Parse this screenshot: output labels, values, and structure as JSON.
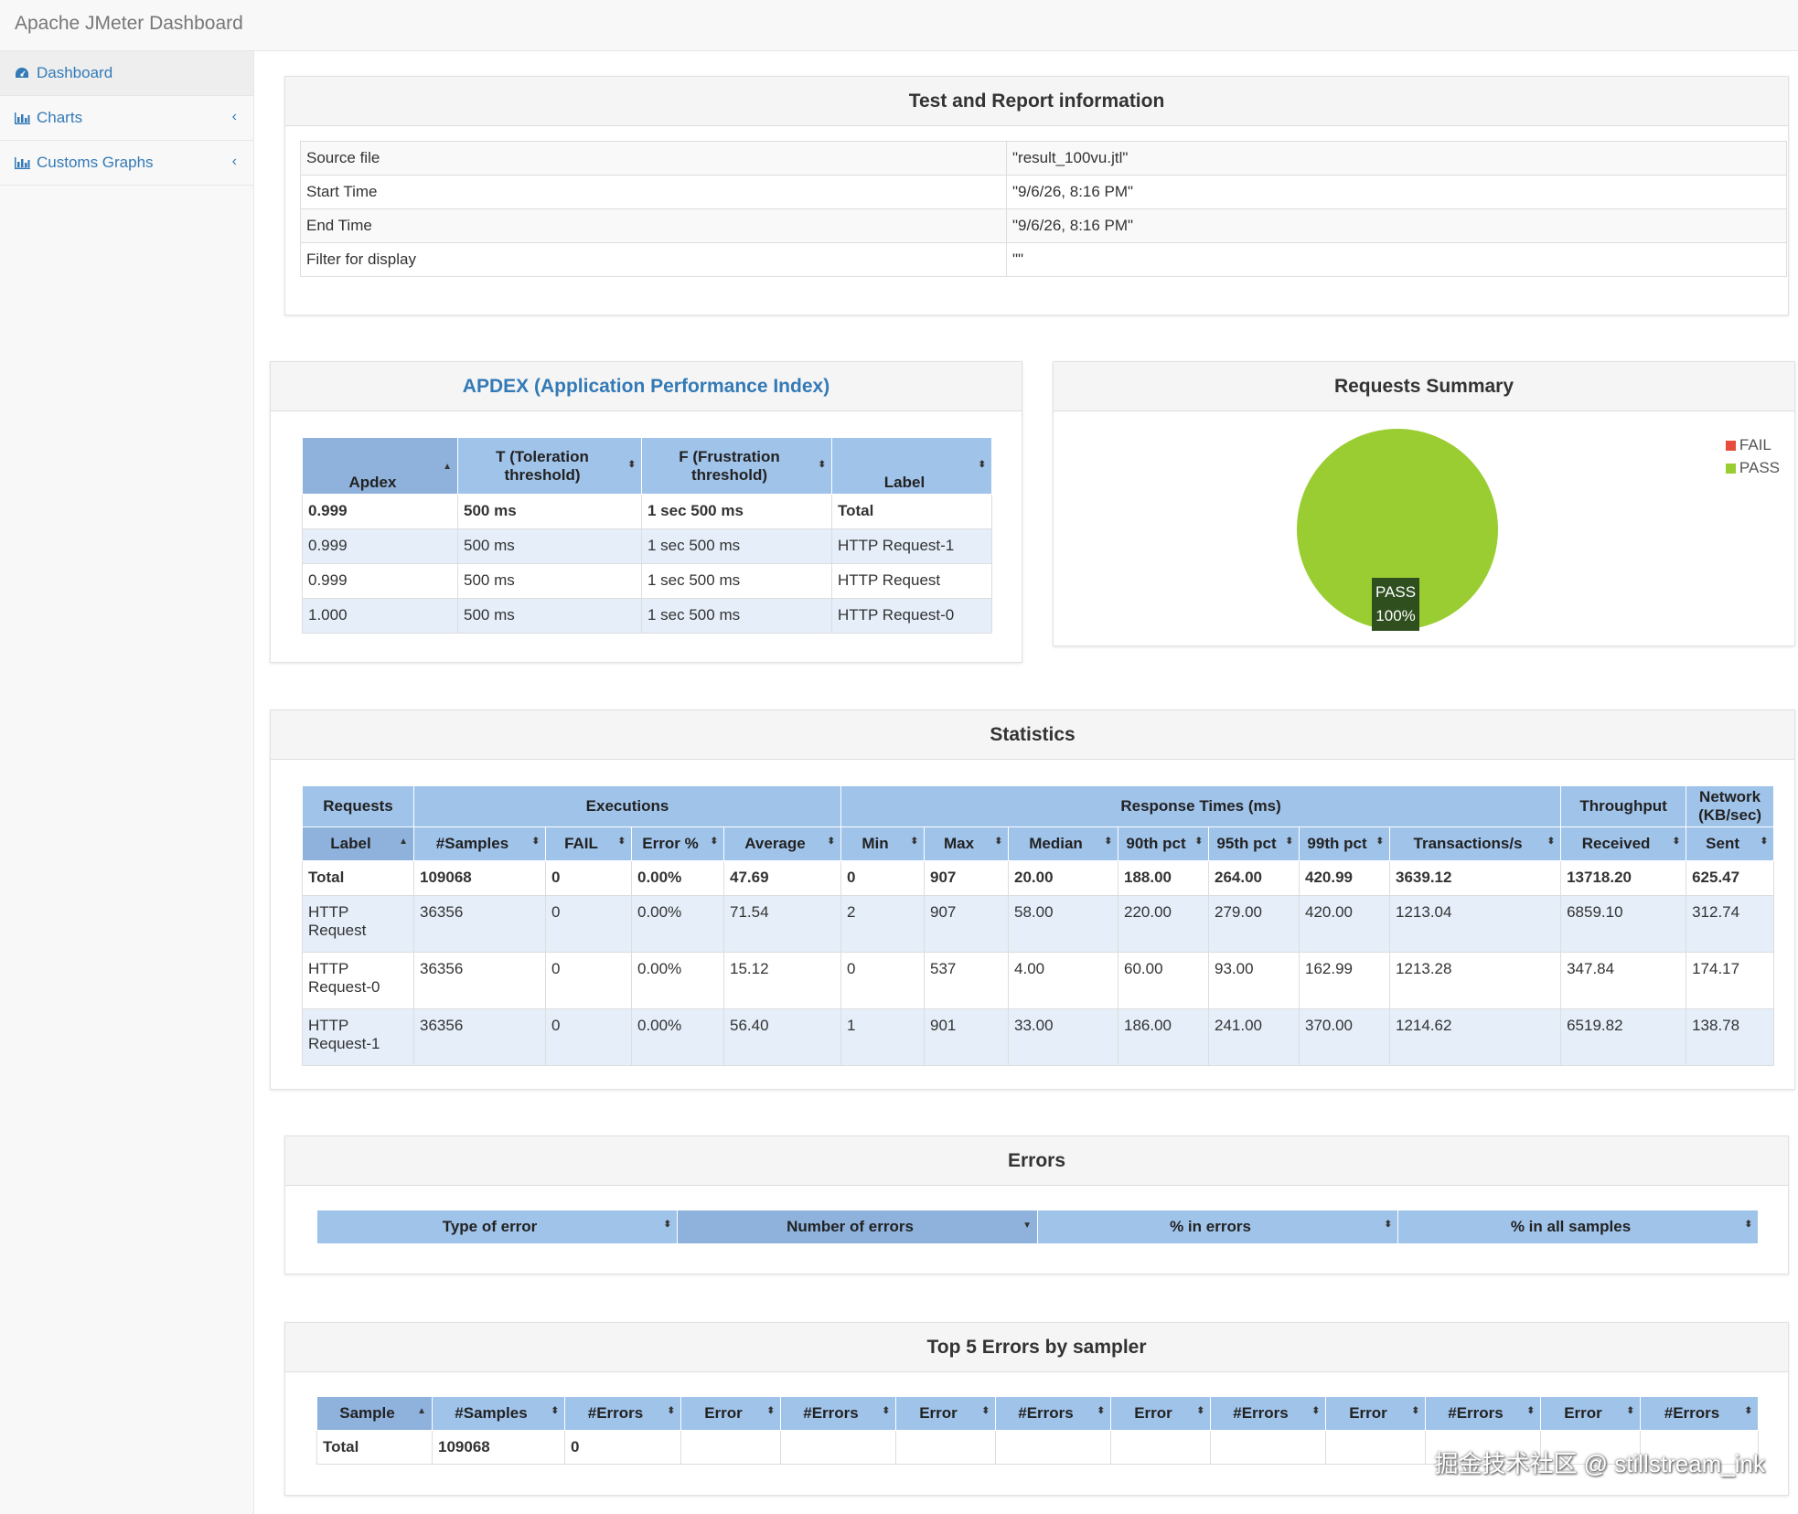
{
  "app": {
    "title": "Apache JMeter Dashboard"
  },
  "sidebar": {
    "items": [
      {
        "label": "Dashboard",
        "icon": "dashboard-icon"
      },
      {
        "label": "Charts",
        "icon": "bar-chart-icon",
        "chevron": "‹"
      },
      {
        "label": "Customs Graphs",
        "icon": "bar-chart-icon",
        "chevron": "‹"
      }
    ]
  },
  "test_info": {
    "title": "Test and Report information",
    "rows": [
      {
        "key": "Source file",
        "value": "\"result_100vu.jtl\""
      },
      {
        "key": "Start Time",
        "value": "\"9/6/26, 8:16 PM\""
      },
      {
        "key": "End Time",
        "value": "\"9/6/26, 8:16 PM\""
      },
      {
        "key": "Filter for display",
        "value": "\"\""
      }
    ]
  },
  "apdex": {
    "title": "APDEX (Application Performance Index)",
    "headers": [
      "Apdex",
      "T (Toleration threshold)",
      "F (Frustration threshold)",
      "Label"
    ],
    "rows": [
      [
        "0.999",
        "500 ms",
        "1 sec 500 ms",
        "Total"
      ],
      [
        "0.999",
        "500 ms",
        "1 sec 500 ms",
        "HTTP Request-1"
      ],
      [
        "0.999",
        "500 ms",
        "1 sec 500 ms",
        "HTTP Request"
      ],
      [
        "1.000",
        "500 ms",
        "1 sec 500 ms",
        "HTTP Request-0"
      ]
    ]
  },
  "summary": {
    "title": "Requests Summary",
    "legend": [
      {
        "label": "FAIL",
        "color": "#e74c3c"
      },
      {
        "label": "PASS",
        "color": "#9acd32"
      }
    ],
    "pie_label": "PASS",
    "pie_value": "100%"
  },
  "statistics": {
    "title": "Statistics",
    "groups": [
      "Requests",
      "Executions",
      "Response Times (ms)",
      "Throughput",
      "Network (KB/sec)"
    ],
    "headers": [
      "Label",
      "#Samples",
      "FAIL",
      "Error %",
      "Average",
      "Min",
      "Max",
      "Median",
      "90th pct",
      "95th pct",
      "99th pct",
      "Transactions/s",
      "Received",
      "Sent"
    ],
    "rows": [
      [
        "Total",
        "109068",
        "0",
        "0.00%",
        "47.69",
        "0",
        "907",
        "20.00",
        "188.00",
        "264.00",
        "420.99",
        "3639.12",
        "13718.20",
        "625.47"
      ],
      [
        "HTTP Request",
        "36356",
        "0",
        "0.00%",
        "71.54",
        "2",
        "907",
        "58.00",
        "220.00",
        "279.00",
        "420.00",
        "1213.04",
        "6859.10",
        "312.74"
      ],
      [
        "HTTP Request-0",
        "36356",
        "0",
        "0.00%",
        "15.12",
        "0",
        "537",
        "4.00",
        "60.00",
        "93.00",
        "162.99",
        "1213.28",
        "347.84",
        "174.17"
      ],
      [
        "HTTP Request-1",
        "36356",
        "0",
        "0.00%",
        "56.40",
        "1",
        "901",
        "33.00",
        "186.00",
        "241.00",
        "370.00",
        "1214.62",
        "6519.82",
        "138.78"
      ]
    ]
  },
  "errors": {
    "title": "Errors",
    "headers": [
      "Type of error",
      "Number of errors",
      "% in errors",
      "% in all samples"
    ]
  },
  "top5": {
    "title": "Top 5 Errors by sampler",
    "headers": [
      "Sample",
      "#Samples",
      "#Errors",
      "Error",
      "#Errors",
      "Error",
      "#Errors",
      "Error",
      "#Errors",
      "Error",
      "#Errors",
      "Error",
      "#Errors"
    ],
    "rows": [
      [
        "Total",
        "109068",
        "0",
        "",
        "",
        "",
        "",
        "",
        "",
        "",
        "",
        "",
        ""
      ]
    ]
  },
  "watermark": "掘金技术社区 @ stillstream_ink"
}
